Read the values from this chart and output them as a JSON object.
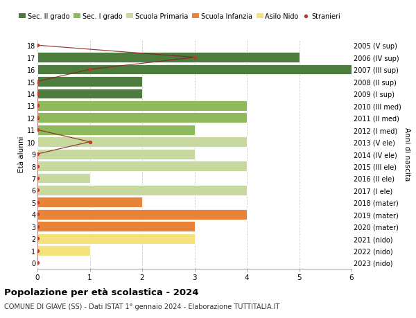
{
  "ages": [
    0,
    1,
    2,
    3,
    4,
    5,
    6,
    7,
    8,
    9,
    10,
    11,
    12,
    13,
    14,
    15,
    16,
    17,
    18
  ],
  "right_labels": [
    "2023 (nido)",
    "2022 (nido)",
    "2021 (nido)",
    "2020 (mater)",
    "2019 (mater)",
    "2018 (mater)",
    "2017 (I ele)",
    "2016 (II ele)",
    "2015 (III ele)",
    "2014 (IV ele)",
    "2013 (V ele)",
    "2012 (I med)",
    "2011 (II med)",
    "2010 (III med)",
    "2009 (I sup)",
    "2008 (II sup)",
    "2007 (III sup)",
    "2006 (IV sup)",
    "2005 (V sup)"
  ],
  "bar_values": [
    0,
    1,
    3,
    3,
    4,
    2,
    4,
    1,
    4,
    3,
    4,
    3,
    4,
    4,
    2,
    2,
    6.5,
    5,
    0
  ],
  "bar_colors": [
    "#f5e27a",
    "#f5e27a",
    "#f5e27a",
    "#e8843a",
    "#e8843a",
    "#e8843a",
    "#c8d9a0",
    "#c8d9a0",
    "#c8d9a0",
    "#c8d9a0",
    "#c8d9a0",
    "#8fba5c",
    "#8fba5c",
    "#8fba5c",
    "#4d7c3f",
    "#4d7c3f",
    "#4d7c3f",
    "#4d7c3f",
    "#4d7c3f"
  ],
  "stranieri_x": [
    0,
    0,
    0,
    0,
    0,
    0,
    0,
    0,
    0,
    0,
    1,
    0,
    0,
    0,
    0,
    0,
    1,
    3,
    0
  ],
  "legend_labels": [
    "Sec. II grado",
    "Sec. I grado",
    "Scuola Primaria",
    "Scuola Infanzia",
    "Asilo Nido",
    "Stranieri"
  ],
  "legend_colors": [
    "#4d7c3f",
    "#8fba5c",
    "#c8d9a0",
    "#e8843a",
    "#f5e27a",
    "#c0392b"
  ],
  "title": "Popolazione per età scolastica - 2024",
  "subtitle": "COMUNE DI GIAVE (SS) - Dati ISTAT 1° gennaio 2024 - Elaborazione TUTTITALIA.IT",
  "ylabel_left": "Età alunni",
  "ylabel_right": "Anni di nascita",
  "xlim": [
    0,
    6
  ],
  "ylim": [
    -0.5,
    18.5
  ],
  "bg_color": "#ffffff",
  "grid_color": "#cccccc",
  "bar_height": 0.85
}
